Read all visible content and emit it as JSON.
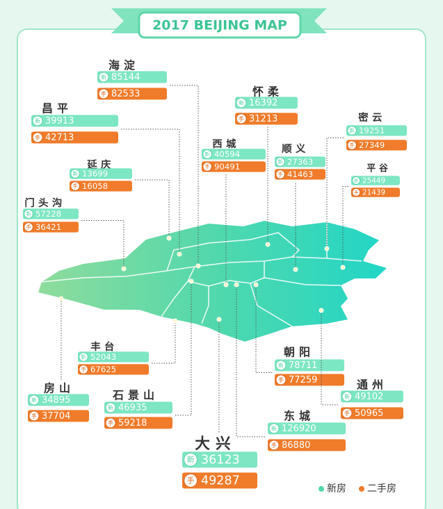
{
  "title": "2017 BEIJING MAP",
  "icons": {
    "new": "新",
    "used": "手"
  },
  "districts": [
    {
      "name": "海淀",
      "new": 85144,
      "used": 82533
    },
    {
      "name": "昌平",
      "new": 39913,
      "used": 42713
    },
    {
      "name": "怀柔",
      "new": 16392,
      "used": 31213
    },
    {
      "name": "西城",
      "new": 40594,
      "used": 90491
    },
    {
      "name": "密云",
      "new": 19251,
      "used": 27349
    },
    {
      "name": "延庆",
      "new": 13699,
      "used": 16058
    },
    {
      "name": "顺义",
      "new": 27363,
      "used": 41463
    },
    {
      "name": "平谷",
      "new": 25449,
      "used": 21439
    },
    {
      "name": "门头沟",
      "new": 57228,
      "used": 36421
    },
    {
      "name": "丰台",
      "new": 52043,
      "used": 67625
    },
    {
      "name": "朝阳",
      "new": 78711,
      "used": 77259
    },
    {
      "name": "房山",
      "new": 34895,
      "used": 37704
    },
    {
      "name": "石景山",
      "new": 46935,
      "used": 59218
    },
    {
      "name": "通州",
      "new": 49102,
      "used": 50965
    },
    {
      "name": "东城",
      "new": 126920,
      "used": 86880
    },
    {
      "name": "大兴",
      "new": 36123,
      "used": 49287
    }
  ],
  "legend": {
    "new": "新房",
    "used": "二手房"
  }
}
